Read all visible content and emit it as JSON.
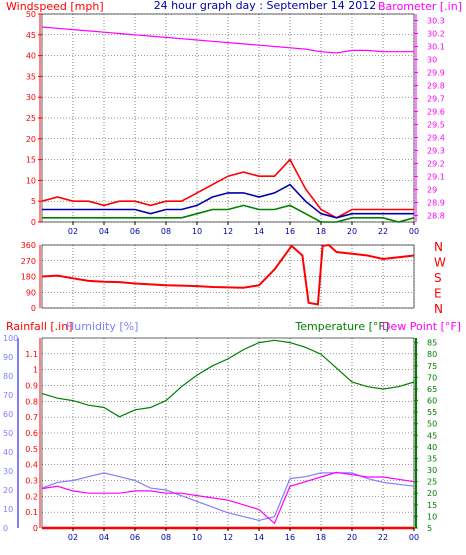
{
  "title": "24 hour graph day : September 14 2012",
  "colors": {
    "wind_max": "#ff0000",
    "wind_avg": "#0000aa",
    "wind_min": "#008000",
    "barometer": "#ff00ff",
    "direction": "#ff0000",
    "rain": "#ff0000",
    "humidity": "#8080ff",
    "temperature": "#008000",
    "dewpoint": "#ff00ff",
    "frame": "#ff0000",
    "grid": "#000000",
    "bg": "#ffffff"
  },
  "chart_data": [
    {
      "type": "line",
      "title": "24 hour graph day : September 14 2012",
      "ylabel": "Windspeed [mph]",
      "y2label": "Barometer [.in]",
      "x_ticks": [
        "02",
        "04",
        "06",
        "08",
        "10",
        "12",
        "14",
        "16",
        "18",
        "20",
        "22",
        "00"
      ],
      "ylim": [
        0,
        50
      ],
      "y_ticks": [
        0,
        5,
        10,
        15,
        20,
        25,
        30,
        35,
        40,
        45,
        50
      ],
      "y2lim": [
        28.75,
        30.35
      ],
      "y2_ticks": [
        28.8,
        28.9,
        29.0,
        29.1,
        29.2,
        29.3,
        29.4,
        29.5,
        29.6,
        29.7,
        29.8,
        29.9,
        30.0,
        30.1,
        30.2,
        30.3
      ],
      "y2_tick_labels": [
        "28.8",
        "28.9",
        "29",
        "29.1",
        "29.2",
        "29.3",
        "29.4",
        "29.5",
        "29.6",
        "29.7",
        "29.8",
        "29.9",
        "30",
        "30.1",
        "30.2",
        "30.3"
      ],
      "x": [
        0,
        1,
        2,
        3,
        4,
        5,
        6,
        7,
        8,
        9,
        10,
        11,
        12,
        13,
        14,
        15,
        16,
        17,
        18,
        19,
        20,
        21,
        22,
        23,
        24
      ],
      "series": [
        {
          "key": "wind_max",
          "values": [
            5,
            6,
            5,
            5,
            4,
            5,
            5,
            4,
            5,
            5,
            7,
            9,
            11,
            12,
            11,
            11,
            15,
            8,
            3,
            1,
            3,
            3,
            3,
            3,
            3
          ]
        },
        {
          "key": "wind_avg",
          "values": [
            3,
            3,
            3,
            3,
            3,
            3,
            3,
            2,
            3,
            3,
            4,
            6,
            7,
            7,
            6,
            7,
            9,
            5,
            2,
            1,
            2,
            2,
            2,
            2,
            2
          ]
        },
        {
          "key": "wind_min",
          "values": [
            1,
            1,
            1,
            1,
            1,
            1,
            1,
            1,
            1,
            1,
            2,
            3,
            3,
            4,
            3,
            3,
            4,
            2,
            0,
            0,
            1,
            1,
            1,
            0,
            1
          ]
        },
        {
          "key": "barometer",
          "axis": "y2",
          "values": [
            30.25,
            30.24,
            30.23,
            30.22,
            30.21,
            30.2,
            30.19,
            30.18,
            30.17,
            30.16,
            30.15,
            30.14,
            30.13,
            30.12,
            30.11,
            30.1,
            30.09,
            30.08,
            30.06,
            30.05,
            30.07,
            30.07,
            30.06,
            30.06,
            30.06
          ]
        }
      ]
    },
    {
      "type": "line",
      "ylabel": "Wind direction",
      "ylim": [
        0,
        360
      ],
      "y_ticks": [
        0,
        90,
        180,
        270,
        360
      ],
      "y_tick_labels": [
        "0",
        "90",
        "180",
        "270",
        "360"
      ],
      "compass_labels": [
        "N",
        "W",
        "S",
        "E",
        "N"
      ],
      "x": [
        0,
        1,
        2,
        3,
        4,
        5,
        6,
        7,
        8,
        9,
        10,
        11,
        12,
        13,
        14,
        15,
        15.9,
        16.1,
        16.8,
        17.2,
        17.8,
        18.1,
        18.5,
        19,
        20,
        21,
        22,
        23,
        24
      ],
      "series": [
        {
          "key": "direction",
          "values": [
            180,
            185,
            170,
            155,
            150,
            148,
            140,
            135,
            130,
            128,
            125,
            120,
            118,
            116,
            130,
            220,
            330,
            355,
            300,
            30,
            20,
            355,
            360,
            320,
            310,
            300,
            280,
            290,
            300
          ]
        }
      ]
    },
    {
      "type": "line",
      "ylabel": "Rainfall [.in]",
      "y2label": "Temperature [°F]",
      "y3label": "Humidity [%]",
      "y4label": "Dew Point [°F]",
      "x_ticks": [
        "02",
        "04",
        "06",
        "08",
        "10",
        "12",
        "14",
        "16",
        "18",
        "20",
        "22",
        "00"
      ],
      "rain_lim": [
        0,
        1.2
      ],
      "rain_ticks": [
        0,
        0.1,
        0.2,
        0.3,
        0.4,
        0.5,
        0.6,
        0.7,
        0.8,
        0.9,
        1,
        1.1
      ],
      "rain_tick_labels": [
        "0",
        "0.1",
        "0.2",
        "0.3",
        "0.4",
        "0.5",
        "0.6",
        "0.7",
        "0.8",
        "0.9",
        "1",
        "1.1"
      ],
      "humidity_lim": [
        0,
        100
      ],
      "humidity_ticks": [
        0,
        10,
        20,
        30,
        40,
        50,
        60,
        70,
        80,
        90,
        100
      ],
      "temp_lim": [
        5,
        87
      ],
      "temp_ticks": [
        5,
        10,
        15,
        20,
        25,
        30,
        35,
        40,
        45,
        50,
        55,
        60,
        65,
        70,
        75,
        80,
        85
      ],
      "x": [
        0,
        1,
        2,
        3,
        4,
        5,
        6,
        7,
        8,
        9,
        10,
        11,
        12,
        13,
        14,
        15,
        16,
        17,
        18,
        19,
        20,
        21,
        22,
        23,
        24
      ],
      "series": [
        {
          "key": "rain",
          "values": [
            0,
            0,
            0,
            0,
            0,
            0,
            0,
            0,
            0,
            0,
            0,
            0,
            0,
            0,
            0,
            0,
            0,
            0,
            0,
            0,
            0,
            0,
            0,
            0,
            0
          ]
        },
        {
          "key": "temperature",
          "values": [
            63,
            61,
            60,
            58,
            57,
            53,
            56,
            57,
            60,
            66,
            71,
            75,
            78,
            82,
            85,
            86,
            85,
            83,
            80,
            74,
            68,
            66,
            65,
            66,
            68
          ]
        },
        {
          "key": "humidity",
          "values": [
            21,
            24,
            25,
            27,
            29,
            27,
            25,
            21,
            20,
            17,
            14,
            11,
            8,
            6,
            4,
            6,
            26,
            27,
            29,
            29,
            29,
            26,
            24,
            23,
            22
          ]
        },
        {
          "key": "dewpoint",
          "values": [
            22,
            23,
            21,
            20,
            20,
            20,
            21,
            21,
            20,
            20,
            19,
            18,
            17,
            15,
            13,
            7,
            23,
            25,
            27,
            29,
            28,
            27,
            27,
            26,
            25
          ]
        }
      ]
    }
  ]
}
